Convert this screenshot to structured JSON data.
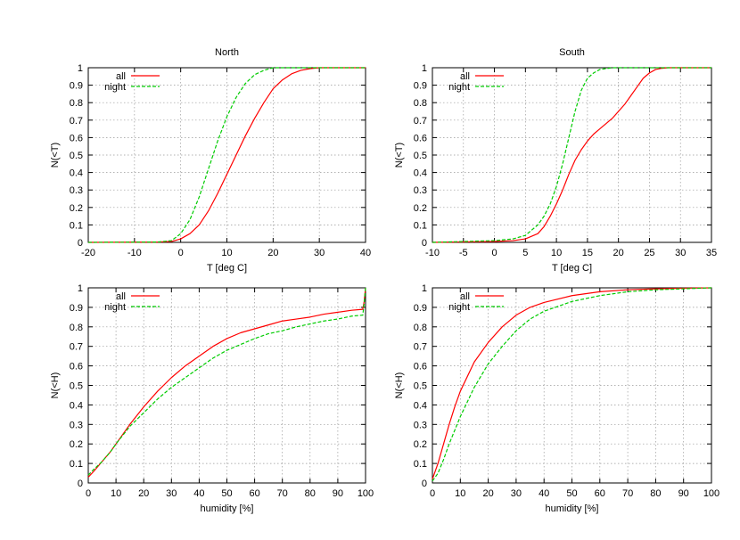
{
  "colors": {
    "all": "#ff0000",
    "night": "#00cc00"
  },
  "chart_data": [
    {
      "type": "line",
      "title": "North",
      "xlabel": "T [deg C]",
      "ylabel": "N(<T)",
      "xlim": [
        -20,
        40
      ],
      "ylim": [
        0,
        1
      ],
      "xticks": [
        -20,
        -10,
        0,
        10,
        20,
        30,
        40
      ],
      "xtick_labels": [
        "-20",
        "-10",
        "0",
        "10",
        "20",
        "30",
        "40"
      ],
      "yticks": [
        0,
        0.1,
        0.2,
        0.3,
        0.4,
        0.5,
        0.6,
        0.7,
        0.8,
        0.9,
        1
      ],
      "ytick_labels": [
        "0",
        "0.1",
        "0.2",
        "0.3",
        "0.4",
        "0.5",
        "0.6",
        "0.7",
        "0.8",
        "0.9",
        "1"
      ],
      "grid": true,
      "legend": "top-left",
      "series": [
        {
          "name": "all",
          "style": "solid",
          "x": [
            -20,
            -5,
            -2,
            0,
            2,
            4,
            6,
            8,
            10,
            12,
            14,
            16,
            18,
            20,
            22,
            24,
            26,
            28,
            30,
            40
          ],
          "y": [
            0,
            0.002,
            0.005,
            0.02,
            0.05,
            0.1,
            0.18,
            0.28,
            0.39,
            0.5,
            0.61,
            0.71,
            0.8,
            0.88,
            0.93,
            0.965,
            0.985,
            0.995,
            1.0,
            1.0
          ]
        },
        {
          "name": "night",
          "style": "dashed",
          "x": [
            -20,
            -5,
            -2,
            0,
            2,
            4,
            6,
            8,
            10,
            12,
            14,
            16,
            18,
            20,
            40
          ],
          "y": [
            0,
            0.002,
            0.01,
            0.05,
            0.13,
            0.26,
            0.42,
            0.58,
            0.72,
            0.83,
            0.91,
            0.96,
            0.985,
            1.0,
            1.0
          ]
        }
      ]
    },
    {
      "type": "line",
      "title": "South",
      "xlabel": "T [deg C]",
      "ylabel": "N(<T)",
      "xlim": [
        -10,
        35
      ],
      "ylim": [
        0,
        1
      ],
      "xticks": [
        -10,
        -5,
        0,
        5,
        10,
        15,
        20,
        25,
        30,
        35
      ],
      "xtick_labels": [
        "-10",
        "-5",
        "0",
        "5",
        "10",
        "15",
        "20",
        "25",
        "30",
        "35"
      ],
      "yticks": [
        0,
        0.1,
        0.2,
        0.3,
        0.4,
        0.5,
        0.6,
        0.7,
        0.8,
        0.9,
        1
      ],
      "ytick_labels": [
        "0",
        "0.1",
        "0.2",
        "0.3",
        "0.4",
        "0.5",
        "0.6",
        "0.7",
        "0.8",
        "0.9",
        "1"
      ],
      "grid": true,
      "legend": "top-left",
      "series": [
        {
          "name": "all",
          "style": "solid",
          "x": [
            -10,
            0,
            3,
            5,
            7,
            8,
            9,
            10,
            11,
            12,
            13,
            14,
            15,
            16,
            17,
            18,
            19,
            20,
            21,
            22,
            23,
            24,
            25,
            26,
            27,
            28,
            35
          ],
          "y": [
            0,
            0.005,
            0.01,
            0.02,
            0.05,
            0.09,
            0.15,
            0.22,
            0.3,
            0.39,
            0.47,
            0.53,
            0.58,
            0.62,
            0.65,
            0.68,
            0.71,
            0.75,
            0.79,
            0.84,
            0.89,
            0.94,
            0.97,
            0.99,
            0.997,
            1.0,
            1.0
          ]
        },
        {
          "name": "night",
          "style": "dashed",
          "x": [
            -10,
            0,
            3,
            5,
            7,
            8,
            9,
            10,
            11,
            12,
            13,
            14,
            15,
            16,
            17,
            18,
            19,
            20,
            35
          ],
          "y": [
            0,
            0.01,
            0.02,
            0.04,
            0.1,
            0.15,
            0.22,
            0.32,
            0.45,
            0.6,
            0.75,
            0.87,
            0.94,
            0.97,
            0.99,
            0.995,
            1.0,
            1.0,
            1.0
          ]
        }
      ]
    },
    {
      "type": "line",
      "title": "",
      "xlabel": "humidity [%]",
      "ylabel": "N(<H)",
      "xlim": [
        0,
        100
      ],
      "ylim": [
        0,
        1
      ],
      "xticks": [
        0,
        10,
        20,
        30,
        40,
        50,
        60,
        70,
        80,
        90,
        100
      ],
      "xtick_labels": [
        "0",
        "10",
        "20",
        "30",
        "40",
        "50",
        "60",
        "70",
        "80",
        "90",
        "100"
      ],
      "yticks": [
        0,
        0.1,
        0.2,
        0.3,
        0.4,
        0.5,
        0.6,
        0.7,
        0.8,
        0.9,
        1
      ],
      "ytick_labels": [
        "0",
        "0.1",
        "0.2",
        "0.3",
        "0.4",
        "0.5",
        "0.6",
        "0.7",
        "0.8",
        "0.9",
        "1"
      ],
      "grid": true,
      "legend": "top-left",
      "series": [
        {
          "name": "all",
          "style": "solid",
          "x": [
            0,
            2,
            5,
            8,
            10,
            15,
            20,
            25,
            30,
            35,
            40,
            45,
            50,
            55,
            60,
            65,
            70,
            75,
            80,
            85,
            90,
            95,
            99,
            99.5,
            100
          ],
          "y": [
            0.03,
            0.06,
            0.11,
            0.16,
            0.2,
            0.3,
            0.39,
            0.47,
            0.54,
            0.6,
            0.65,
            0.7,
            0.74,
            0.77,
            0.79,
            0.81,
            0.83,
            0.84,
            0.85,
            0.865,
            0.875,
            0.885,
            0.89,
            0.93,
            1.0
          ]
        },
        {
          "name": "night",
          "style": "dashed",
          "x": [
            0,
            2,
            5,
            8,
            10,
            15,
            20,
            25,
            30,
            35,
            40,
            45,
            50,
            55,
            60,
            65,
            70,
            75,
            80,
            85,
            90,
            95,
            99,
            99.5,
            100
          ],
          "y": [
            0.04,
            0.07,
            0.11,
            0.16,
            0.2,
            0.29,
            0.36,
            0.43,
            0.49,
            0.54,
            0.59,
            0.64,
            0.68,
            0.71,
            0.74,
            0.765,
            0.78,
            0.8,
            0.815,
            0.83,
            0.84,
            0.855,
            0.86,
            0.92,
            1.0
          ]
        }
      ]
    },
    {
      "type": "line",
      "title": "",
      "xlabel": "humidity [%]",
      "ylabel": "N(<H)",
      "xlim": [
        0,
        100
      ],
      "ylim": [
        0,
        1
      ],
      "xticks": [
        0,
        10,
        20,
        30,
        40,
        50,
        60,
        70,
        80,
        90,
        100
      ],
      "xtick_labels": [
        "0",
        "10",
        "20",
        "30",
        "40",
        "50",
        "60",
        "70",
        "80",
        "90",
        "100"
      ],
      "yticks": [
        0,
        0.1,
        0.2,
        0.3,
        0.4,
        0.5,
        0.6,
        0.7,
        0.8,
        0.9,
        1
      ],
      "ytick_labels": [
        "0",
        "0.1",
        "0.2",
        "0.3",
        "0.4",
        "0.5",
        "0.6",
        "0.7",
        "0.8",
        "0.9",
        "1"
      ],
      "grid": true,
      "legend": "top-left",
      "series": [
        {
          "name": "all",
          "style": "solid",
          "x": [
            0,
            2,
            4,
            6,
            8,
            10,
            15,
            20,
            25,
            30,
            35,
            40,
            50,
            60,
            70,
            80,
            90,
            100
          ],
          "y": [
            0.02,
            0.1,
            0.2,
            0.3,
            0.39,
            0.47,
            0.62,
            0.72,
            0.8,
            0.86,
            0.9,
            0.925,
            0.96,
            0.98,
            0.99,
            0.995,
            0.998,
            1.0
          ]
        },
        {
          "name": "night",
          "style": "dashed",
          "x": [
            0,
            2,
            4,
            6,
            8,
            10,
            15,
            20,
            25,
            30,
            35,
            40,
            50,
            60,
            70,
            80,
            90,
            100
          ],
          "y": [
            0.01,
            0.05,
            0.12,
            0.2,
            0.27,
            0.34,
            0.49,
            0.61,
            0.7,
            0.78,
            0.84,
            0.88,
            0.93,
            0.96,
            0.98,
            0.99,
            0.995,
            1.0
          ]
        }
      ]
    }
  ]
}
